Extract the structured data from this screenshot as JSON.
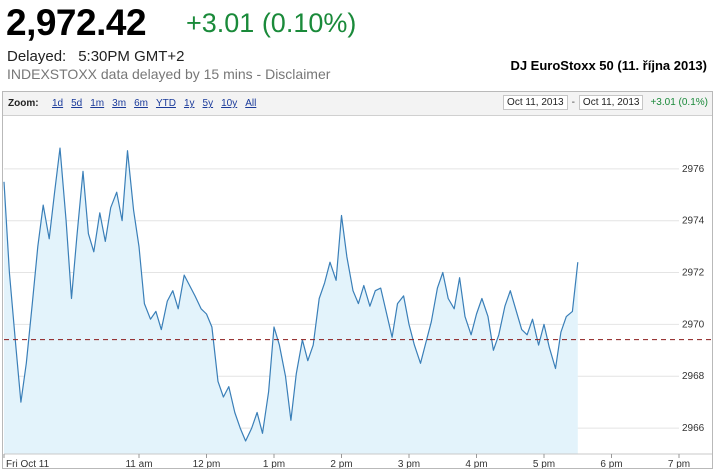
{
  "quote": {
    "price": "2,972.42",
    "change": "+3.01 (0.10%)",
    "delayed_label": "Delayed:",
    "delayed_time": "5:30PM GMT+2",
    "disclaimer": "INDEXSTOXX data delayed by 15 mins - Disclaimer",
    "caption": "DJ EuroStoxx 50 (11. října 2013)"
  },
  "toolbar": {
    "zoom_label": "Zoom:",
    "zoom_options": [
      "1d",
      "5d",
      "1m",
      "3m",
      "6m",
      "YTD",
      "1y",
      "5y",
      "10y",
      "All"
    ],
    "active_zoom": "1d",
    "range_start": "Oct 11, 2013",
    "range_separator": "-",
    "range_end": "Oct 11, 2013",
    "range_change": "+3.01 (0.1%)"
  },
  "colors": {
    "up": "#1a8a3a",
    "line": "#3a7fb8",
    "fill": "#e3f3fb",
    "reference_line": "#8b1a1a"
  },
  "chart_data": {
    "type": "line",
    "x_unit": "hours (CET), Fri Oct 11 2013",
    "x": [
      9.0,
      9.08,
      9.17,
      9.25,
      9.33,
      9.42,
      9.5,
      9.58,
      9.67,
      9.75,
      9.83,
      9.92,
      10.0,
      10.08,
      10.17,
      10.25,
      10.33,
      10.42,
      10.5,
      10.58,
      10.67,
      10.75,
      10.83,
      10.92,
      11.0,
      11.08,
      11.17,
      11.25,
      11.33,
      11.42,
      11.5,
      11.58,
      11.67,
      11.75,
      11.83,
      11.92,
      12.0,
      12.08,
      12.17,
      12.25,
      12.33,
      12.42,
      12.5,
      12.58,
      12.67,
      12.75,
      12.83,
      12.92,
      13.0,
      13.08,
      13.17,
      13.25,
      13.33,
      13.42,
      13.5,
      13.58,
      13.67,
      13.75,
      13.83,
      13.92,
      14.0,
      14.08,
      14.17,
      14.25,
      14.33,
      14.42,
      14.5,
      14.58,
      14.67,
      14.75,
      14.83,
      14.92,
      15.0,
      15.08,
      15.17,
      15.25,
      15.33,
      15.42,
      15.5,
      15.58,
      15.67,
      15.75,
      15.83,
      15.92,
      16.0,
      16.08,
      16.17,
      16.25,
      16.33,
      16.42,
      16.5,
      16.58,
      16.67,
      16.75,
      16.83,
      16.92,
      17.0,
      17.08,
      17.17,
      17.25,
      17.33,
      17.42,
      17.5
    ],
    "y": [
      2975.5,
      2972.0,
      2969.3,
      2967.0,
      2968.5,
      2970.8,
      2973.0,
      2974.6,
      2973.3,
      2975.1,
      2976.8,
      2974.0,
      2971.0,
      2973.4,
      2975.9,
      2973.5,
      2972.8,
      2974.3,
      2973.2,
      2974.5,
      2975.1,
      2974.0,
      2976.7,
      2974.4,
      2973.0,
      2970.8,
      2970.2,
      2970.5,
      2969.8,
      2970.9,
      2971.3,
      2970.6,
      2971.9,
      2971.5,
      2971.1,
      2970.6,
      2970.4,
      2969.9,
      2967.8,
      2967.2,
      2967.6,
      2966.6,
      2966.0,
      2965.5,
      2966.0,
      2966.6,
      2965.8,
      2967.4,
      2969.9,
      2969.2,
      2968.0,
      2966.3,
      2968.1,
      2969.4,
      2968.6,
      2969.2,
      2971.0,
      2971.6,
      2972.4,
      2971.7,
      2974.2,
      2972.6,
      2971.3,
      2970.8,
      2971.5,
      2970.7,
      2971.3,
      2971.4,
      2970.4,
      2969.5,
      2970.8,
      2971.1,
      2970.0,
      2969.2,
      2968.5,
      2969.3,
      2970.1,
      2971.4,
      2972.0,
      2971.0,
      2970.6,
      2971.8,
      2970.3,
      2969.6,
      2970.4,
      2971.0,
      2970.3,
      2969.0,
      2969.6,
      2970.7,
      2971.3,
      2970.6,
      2969.8,
      2969.6,
      2970.2,
      2969.2,
      2970.0,
      2969.1,
      2968.3,
      2969.7,
      2970.3,
      2970.5,
      2972.4
    ],
    "reference_value": 2969.41,
    "xlim": [
      9.0,
      19.0
    ],
    "ylim": [
      2965.0,
      2978.0
    ],
    "y_ticks": [
      2966,
      2968,
      2970,
      2972,
      2974,
      2976
    ],
    "x_ticks": [
      {
        "x": 9.0,
        "label": "Fri Oct 11"
      },
      {
        "x": 11.0,
        "label": "11 am"
      },
      {
        "x": 12.0,
        "label": "12 pm"
      },
      {
        "x": 13.0,
        "label": "1 pm"
      },
      {
        "x": 14.0,
        "label": "2 pm"
      },
      {
        "x": 15.0,
        "label": "3 pm"
      },
      {
        "x": 16.0,
        "label": "4 pm"
      },
      {
        "x": 17.0,
        "label": "5 pm"
      },
      {
        "x": 18.0,
        "label": "6 pm"
      },
      {
        "x": 19.0,
        "label": "7 pm"
      }
    ],
    "grid": true,
    "filled_area": true
  }
}
